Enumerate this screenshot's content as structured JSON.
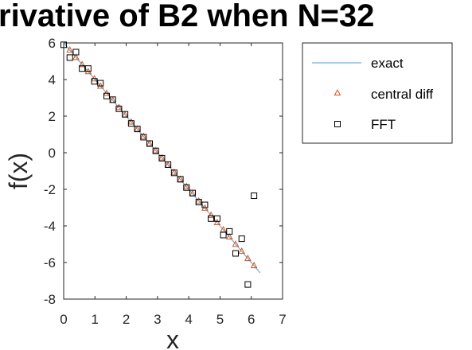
{
  "chart_data": {
    "type": "line",
    "title": "rivative of B2 when N=32",
    "xlabel": "x",
    "ylabel": "f(x)",
    "xlim": [
      0,
      7
    ],
    "ylim": [
      -8,
      6
    ],
    "xticks": [
      "0",
      "1",
      "2",
      "3",
      "4",
      "5",
      "6",
      "7"
    ],
    "yticks": [
      "-8",
      "-6",
      "-4",
      "-2",
      "0",
      "2",
      "4",
      "6"
    ],
    "legend_position": "outside-right",
    "series": [
      {
        "name": "exact",
        "kind": "line",
        "color": "#4D9FD8",
        "x": [
          0,
          6.2832
        ],
        "y": [
          6.0,
          -6.5664
        ]
      },
      {
        "name": "central diff",
        "kind": "triangle-markers",
        "color": "#D95319",
        "x": [
          0.196,
          0.393,
          0.589,
          0.785,
          0.982,
          1.178,
          1.374,
          1.571,
          1.767,
          1.963,
          2.16,
          2.356,
          2.553,
          2.749,
          2.945,
          3.142,
          3.338,
          3.534,
          3.731,
          3.927,
          4.123,
          4.32,
          4.516,
          4.712,
          4.909,
          5.105,
          5.301,
          5.498,
          5.694,
          5.89,
          6.087
        ],
        "y": [
          5.61,
          5.21,
          4.82,
          4.43,
          4.04,
          3.64,
          3.25,
          2.86,
          2.47,
          2.07,
          1.68,
          1.29,
          0.89,
          0.5,
          0.11,
          -0.28,
          -0.68,
          -1.07,
          -1.46,
          -1.85,
          -2.25,
          -2.64,
          -3.03,
          -3.42,
          -3.82,
          -4.21,
          -4.6,
          -5.0,
          -5.39,
          -5.78,
          -6.17
        ]
      },
      {
        "name": "FFT",
        "kind": "square-markers",
        "color": "#000000",
        "x": [
          0.0,
          0.196,
          0.393,
          0.589,
          0.785,
          0.982,
          1.178,
          1.374,
          1.571,
          1.767,
          1.963,
          2.16,
          2.356,
          2.553,
          2.749,
          2.945,
          3.142,
          3.338,
          3.534,
          3.731,
          3.927,
          4.123,
          4.32,
          4.516,
          4.712,
          4.909,
          5.105,
          5.301,
          5.498,
          5.694,
          5.89,
          6.087
        ],
        "y": [
          5.9,
          5.2,
          5.5,
          4.6,
          4.6,
          3.9,
          3.8,
          3.1,
          2.9,
          2.4,
          2.1,
          1.6,
          1.3,
          0.85,
          0.5,
          0.1,
          -0.3,
          -0.65,
          -1.1,
          -1.45,
          -1.9,
          -2.2,
          -2.7,
          -2.85,
          -3.6,
          -3.6,
          -4.5,
          -4.3,
          -5.5,
          -4.7,
          -7.2,
          -2.35
        ]
      }
    ]
  }
}
